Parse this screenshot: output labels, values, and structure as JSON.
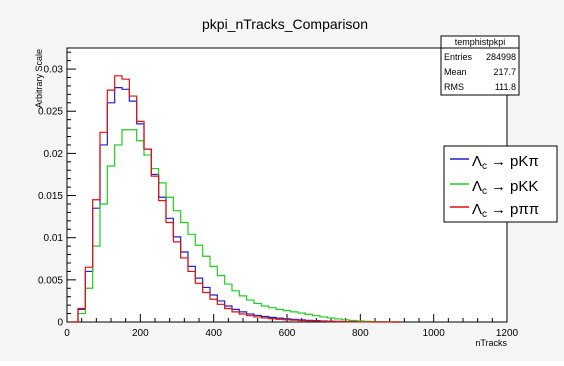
{
  "chart_data": {
    "type": "line",
    "title": "pkpi_nTracks_Comparison",
    "xlabel": "nTracks",
    "ylabel": "Arbitrary Scale",
    "xlim": [
      0,
      1200
    ],
    "ylim": [
      0,
      0.0325
    ],
    "x_ticks": [
      0,
      200,
      400,
      600,
      800,
      1000,
      1200
    ],
    "x_tick_labels": [
      "0",
      "200",
      "400",
      "600",
      "800",
      "1000",
      "1200"
    ],
    "y_ticks": [
      0,
      0.005,
      0.01,
      0.015,
      0.02,
      0.025,
      0.03
    ],
    "y_tick_labels": [
      "0",
      "0.005",
      "0.01",
      "0.015",
      "0.02",
      "0.025",
      "0.03"
    ],
    "grid": false,
    "legend_position": "right",
    "stats_box": {
      "title": "temphistpkpi",
      "rows": [
        {
          "label": "Entries",
          "value": "284998"
        },
        {
          "label": "Mean",
          "value": "217.7"
        },
        {
          "label": "RMS",
          "value": "111.8"
        }
      ]
    },
    "series": [
      {
        "name": "Λc → pKπ",
        "legend_parts": {
          "base": "Λ",
          "sub": "c",
          "arrow": "→",
          "final": "pKπ"
        },
        "color": "#2222cc",
        "x": [
          20,
          40,
          60,
          80,
          100,
          120,
          140,
          160,
          180,
          200,
          220,
          240,
          260,
          280,
          300,
          320,
          340,
          360,
          380,
          400,
          420,
          440,
          460,
          480,
          500,
          520,
          540,
          560,
          580,
          600,
          620,
          640,
          660,
          680,
          700,
          720,
          740,
          760,
          780,
          800,
          820,
          840,
          860,
          880,
          900
        ],
        "y": [
          0,
          0.0015,
          0.006,
          0.0135,
          0.021,
          0.026,
          0.0278,
          0.0276,
          0.0262,
          0.0235,
          0.0205,
          0.0175,
          0.0148,
          0.0123,
          0.0101,
          0.0083,
          0.0066,
          0.0052,
          0.0041,
          0.0032,
          0.0025,
          0.0019,
          0.0015,
          0.0012,
          0.00095,
          0.00078,
          0.00065,
          0.00055,
          0.00046,
          0.00038,
          0.00031,
          0.00025,
          0.0002,
          0.00016,
          0.00012,
          9e-05,
          7e-05,
          5e-05,
          4e-05,
          3e-05,
          2e-05,
          1e-05,
          1e-05,
          1e-05,
          0
        ]
      },
      {
        "name": "Λc → pKK",
        "legend_parts": {
          "base": "Λ",
          "sub": "c",
          "arrow": "→",
          "final": "pKK"
        },
        "color": "#22cc22",
        "x": [
          20,
          40,
          60,
          80,
          100,
          120,
          140,
          160,
          180,
          200,
          220,
          240,
          260,
          280,
          300,
          320,
          340,
          360,
          380,
          400,
          420,
          440,
          460,
          480,
          500,
          520,
          540,
          560,
          580,
          600,
          620,
          640,
          660,
          680,
          700,
          720,
          740,
          760,
          780,
          800,
          820,
          840,
          860,
          880,
          900
        ],
        "y": [
          0,
          0.001,
          0.004,
          0.009,
          0.014,
          0.0185,
          0.021,
          0.0228,
          0.0228,
          0.0215,
          0.0198,
          0.0182,
          0.0165,
          0.0148,
          0.0132,
          0.0118,
          0.0104,
          0.0091,
          0.0078,
          0.0066,
          0.0055,
          0.0045,
          0.0037,
          0.0031,
          0.0026,
          0.0022,
          0.0019,
          0.0017,
          0.0015,
          0.00135,
          0.0012,
          0.00105,
          0.0009,
          0.00075,
          0.0006,
          0.00048,
          0.00036,
          0.00026,
          0.00018,
          0.00012,
          8e-05,
          5e-05,
          3e-05,
          2e-05,
          0
        ]
      },
      {
        "name": "Λc → pππ",
        "legend_parts": {
          "base": "Λ",
          "sub": "c",
          "arrow": "→",
          "final": "pππ"
        },
        "color": "#dd1111",
        "x": [
          20,
          40,
          60,
          80,
          100,
          120,
          140,
          160,
          180,
          200,
          220,
          240,
          260,
          280,
          300,
          320,
          340,
          360,
          380,
          400,
          420,
          440,
          460,
          480,
          500,
          520,
          540,
          560,
          580,
          600,
          620,
          640,
          660,
          680,
          700,
          720,
          740,
          760,
          780,
          800,
          820,
          840,
          860,
          880,
          900
        ],
        "y": [
          0,
          0.0016,
          0.0065,
          0.0145,
          0.0225,
          0.0275,
          0.0292,
          0.0288,
          0.0268,
          0.0238,
          0.0205,
          0.0173,
          0.0144,
          0.0118,
          0.0095,
          0.0076,
          0.006,
          0.0046,
          0.0035,
          0.0027,
          0.0021,
          0.0016,
          0.0012,
          0.00095,
          0.00075,
          0.0006,
          0.00049,
          0.0004,
          0.00033,
          0.00027,
          0.00022,
          0.00018,
          0.00014,
          0.00011,
          8e-05,
          6e-05,
          4e-05,
          3e-05,
          2e-05,
          1e-05,
          1e-05,
          0,
          0,
          0,
          0
        ]
      }
    ]
  }
}
